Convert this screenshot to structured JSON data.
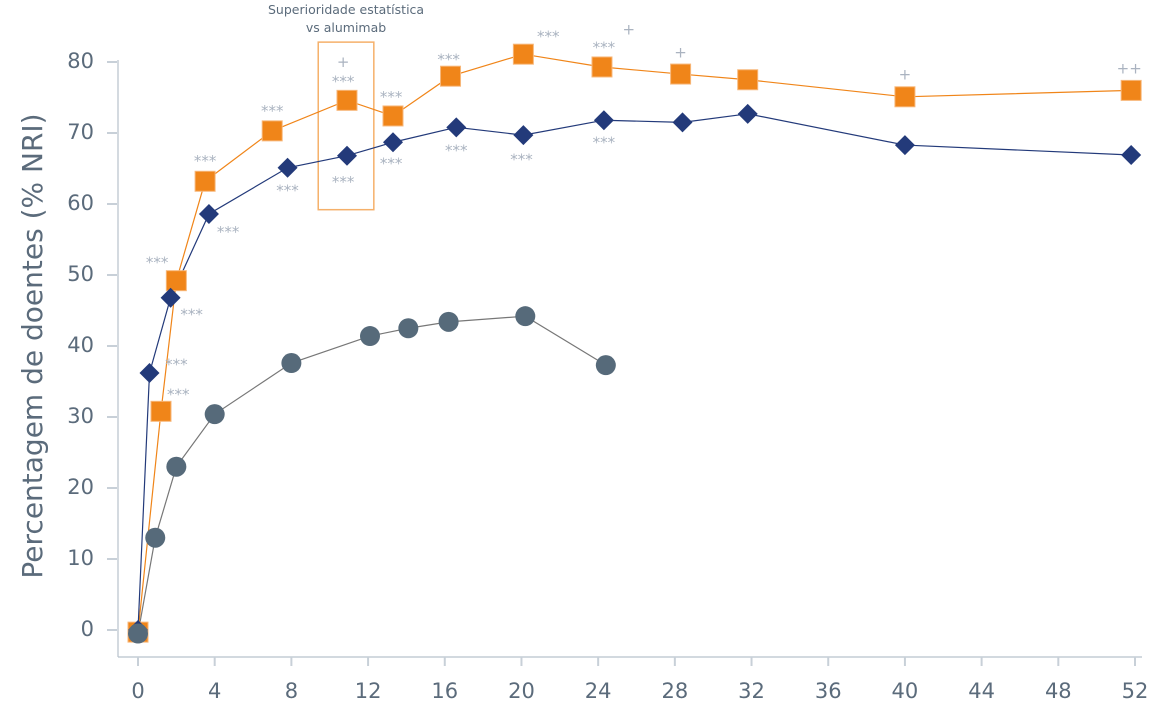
{
  "chart_data": {
    "type": "line",
    "title": "",
    "xlabel": "",
    "ylabel": "Percentagem de doentes (% NRI)",
    "xlim": [
      0,
      52
    ],
    "ylim": [
      0,
      80
    ],
    "xticks": [
      "0",
      "4",
      "8",
      "12",
      "16",
      "20",
      "24",
      "28",
      "32",
      "36",
      "40",
      "44",
      "48",
      "52"
    ],
    "yticks": [
      "0",
      "10",
      "20",
      "30",
      "40",
      "50",
      "60",
      "70",
      "80"
    ],
    "grid": false,
    "series": [
      {
        "name": "orange-squares",
        "color": "#f08519",
        "marker": "square",
        "x": [
          0,
          1.2,
          2.0,
          3.5,
          7.0,
          10.9,
          13.3,
          16.3,
          20.1,
          24.2,
          28.3,
          31.8,
          40.0,
          51.8
        ],
        "y": [
          -0.3,
          30.8,
          49.2,
          63.2,
          70.3,
          74.6,
          72.4,
          78.0,
          81.1,
          79.3,
          78.3,
          77.5,
          75.1,
          76.0
        ]
      },
      {
        "name": "navy-diamonds",
        "color": "#233a7a",
        "marker": "diamond",
        "x": [
          0,
          0.6,
          1.7,
          3.7,
          7.8,
          10.9,
          13.3,
          16.6,
          20.1,
          24.3,
          28.4,
          31.8,
          40.0,
          51.8
        ],
        "y": [
          0,
          36.2,
          46.8,
          58.6,
          65.1,
          66.8,
          68.7,
          70.8,
          69.7,
          71.8,
          71.5,
          72.7,
          68.3,
          66.9
        ]
      },
      {
        "name": "gray-circles",
        "color": "#566a7a",
        "marker": "circle",
        "x": [
          0,
          0.9,
          2.0,
          4.0,
          8.0,
          12.1,
          14.1,
          16.2,
          20.2,
          24.4
        ],
        "y": [
          -0.5,
          13.0,
          23.0,
          30.4,
          37.6,
          41.4,
          42.5,
          43.4,
          44.2,
          37.3
        ]
      }
    ],
    "annotations": [
      {
        "text": "***",
        "x": 1.0,
        "y": 51.7
      },
      {
        "text": "***",
        "x": 2.8,
        "y": 44.4
      },
      {
        "text": "***",
        "x": 2.0,
        "y": 37.3
      },
      {
        "text": "***",
        "x": 2.1,
        "y": 33.1
      },
      {
        "text": "***",
        "x": 3.5,
        "y": 66.0
      },
      {
        "text": "***",
        "x": 4.7,
        "y": 56.0
      },
      {
        "text": "***",
        "x": 7.0,
        "y": 73.0
      },
      {
        "text": "***",
        "x": 7.8,
        "y": 61.8
      },
      {
        "text": "+",
        "x": 10.7,
        "y": 79.9
      },
      {
        "text": "***",
        "x": 10.7,
        "y": 77.2
      },
      {
        "text": "***",
        "x": 10.7,
        "y": 63.0
      },
      {
        "text": "***",
        "x": 13.2,
        "y": 75.0
      },
      {
        "text": "***",
        "x": 13.2,
        "y": 65.6
      },
      {
        "text": "***",
        "x": 16.2,
        "y": 80.3
      },
      {
        "text": "***",
        "x": 16.6,
        "y": 67.5
      },
      {
        "text": "***",
        "x": 21.4,
        "y": 83.5
      },
      {
        "text": "***",
        "x": 20.0,
        "y": 66.2
      },
      {
        "text": "***",
        "x": 24.3,
        "y": 82.0
      },
      {
        "text": "+",
        "x": 25.6,
        "y": 84.5
      },
      {
        "text": "***",
        "x": 24.3,
        "y": 68.6
      },
      {
        "text": "+",
        "x": 28.3,
        "y": 81.3
      },
      {
        "text": "+",
        "x": 40.0,
        "y": 78.2
      },
      {
        "text": "++",
        "x": 51.7,
        "y": 79.0
      }
    ],
    "highlight_box": {
      "title_lines": [
        "Superioridade estatística",
        "vs alumimab"
      ],
      "x_range": [
        9.4,
        12.3
      ],
      "y_range": [
        59.2,
        82.8
      ],
      "color": "#f5b06a"
    }
  }
}
